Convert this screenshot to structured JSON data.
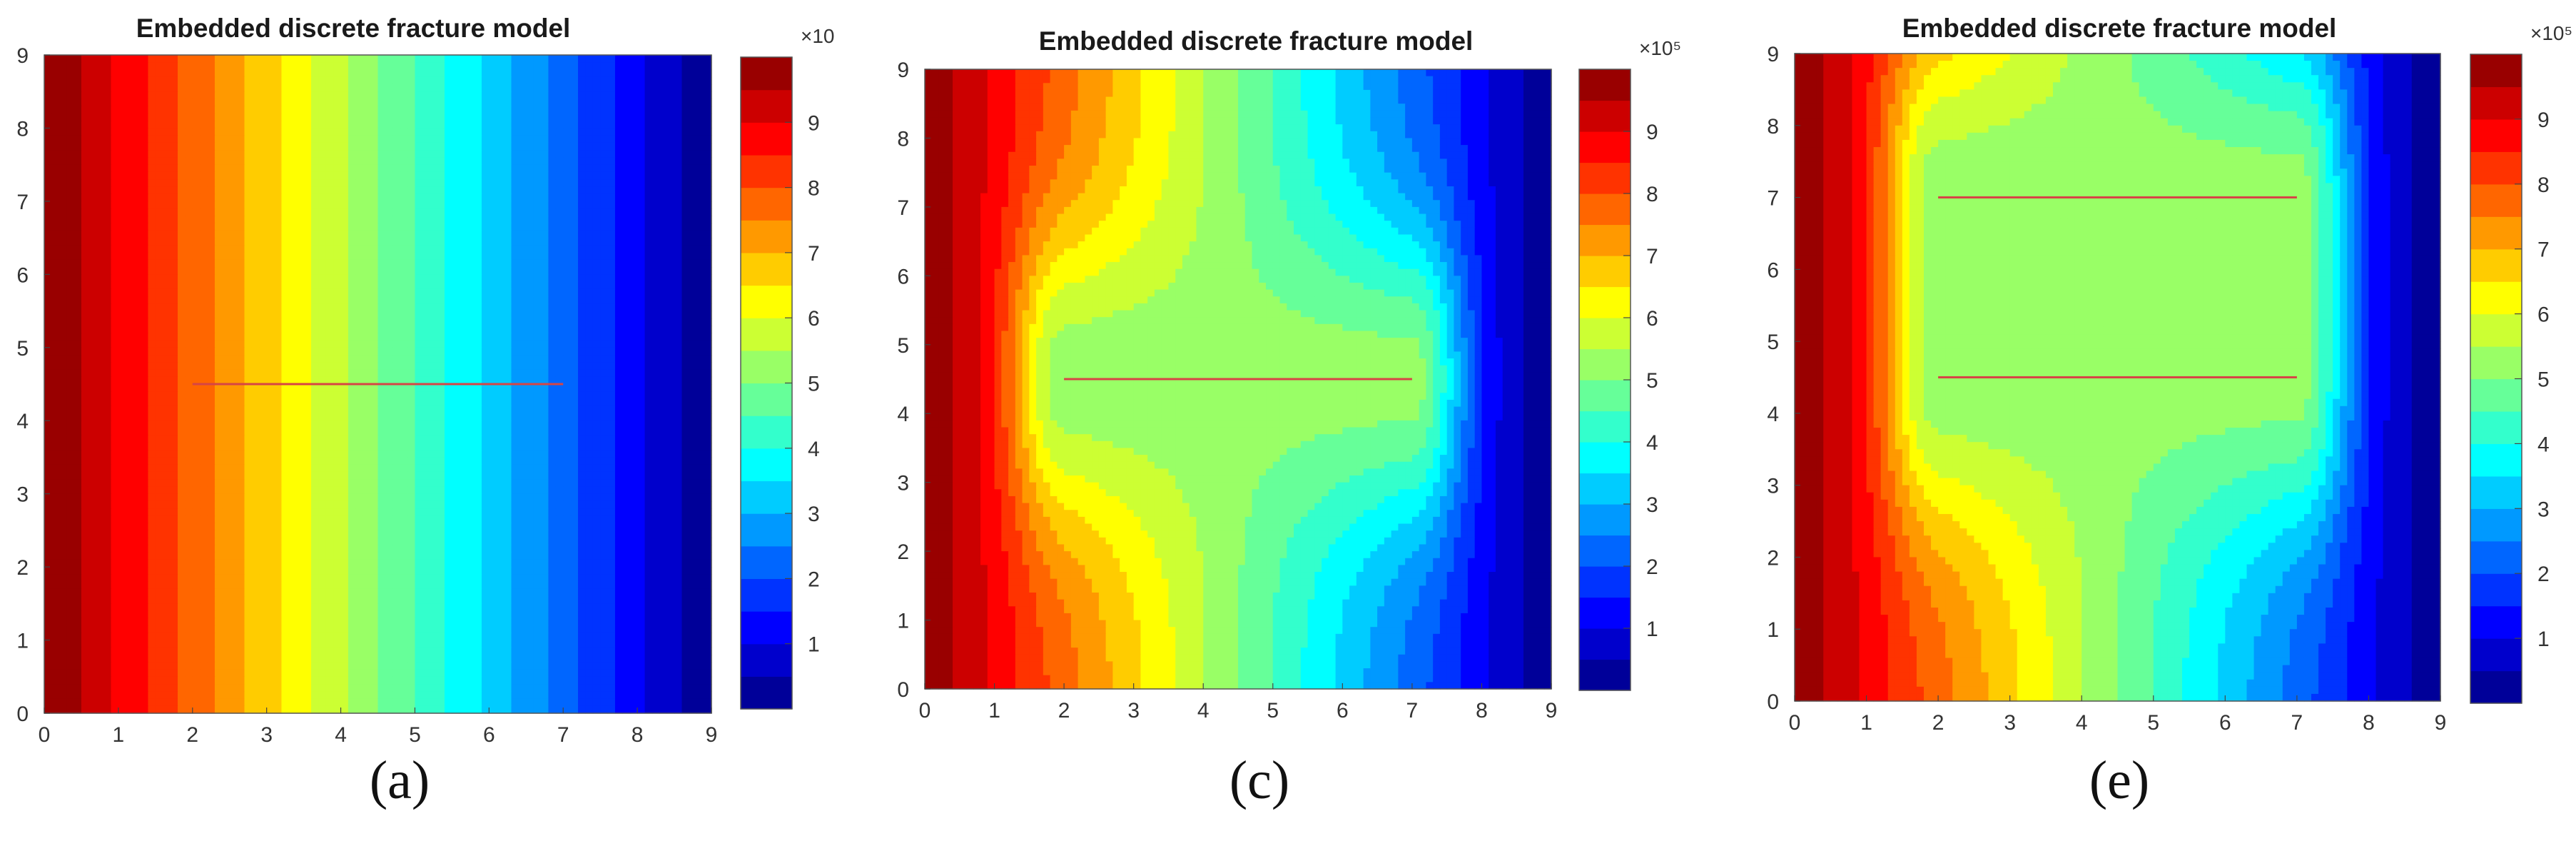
{
  "chart_data": [
    {
      "type": "heatmap",
      "panel_label": "(a)",
      "title": "Embedded discrete fracture model",
      "xlabel": "",
      "ylabel": "",
      "xlim": [
        0,
        9
      ],
      "ylim": [
        0,
        9
      ],
      "x_ticks": [
        "0",
        "1",
        "2",
        "3",
        "4",
        "5",
        "6",
        "7",
        "8",
        "9"
      ],
      "y_ticks": [
        "0",
        "1",
        "2",
        "3",
        "4",
        "5",
        "6",
        "7",
        "8",
        "9"
      ],
      "colorbar": {
        "min": 0,
        "max": 10,
        "ticks": [
          "1",
          "2",
          "3",
          "4",
          "5",
          "6",
          "7",
          "8",
          "9"
        ],
        "exponent_label": "×10"
      },
      "fractures": [
        {
          "x": [
            2.0,
            7.0
          ],
          "y": [
            4.5,
            4.5
          ],
          "color": "#d64545"
        }
      ],
      "colormap": "jet",
      "levels": 20
    },
    {
      "type": "heatmap",
      "panel_label": "(c)",
      "title": "Embedded discrete fracture model",
      "xlabel": "",
      "ylabel": "",
      "xlim": [
        0,
        9
      ],
      "ylim": [
        0,
        9
      ],
      "x_ticks": [
        "0",
        "1",
        "2",
        "3",
        "4",
        "5",
        "6",
        "7",
        "8",
        "9"
      ],
      "y_ticks": [
        "0",
        "1",
        "2",
        "3",
        "4",
        "5",
        "6",
        "7",
        "8",
        "9"
      ],
      "colorbar": {
        "min": 0,
        "max": 10,
        "ticks": [
          "1",
          "2",
          "3",
          "4",
          "5",
          "6",
          "7",
          "8",
          "9"
        ],
        "exponent_label": "×10⁵"
      },
      "fractures": [
        {
          "x": [
            2.0,
            7.0
          ],
          "y": [
            4.5,
            4.5
          ],
          "color": "#d64545"
        }
      ],
      "colormap": "jet",
      "levels": 20
    },
    {
      "type": "heatmap",
      "panel_label": "(e)",
      "title": "Embedded discrete fracture model",
      "xlabel": "",
      "ylabel": "",
      "xlim": [
        0,
        9
      ],
      "ylim": [
        0,
        9
      ],
      "x_ticks": [
        "0",
        "1",
        "2",
        "3",
        "4",
        "5",
        "6",
        "7",
        "8",
        "9"
      ],
      "y_ticks": [
        "0",
        "1",
        "2",
        "3",
        "4",
        "5",
        "6",
        "7",
        "8",
        "9"
      ],
      "colorbar": {
        "min": 0,
        "max": 10,
        "ticks": [
          "1",
          "2",
          "3",
          "4",
          "5",
          "6",
          "7",
          "8",
          "9"
        ],
        "exponent_label": "×10⁵"
      },
      "fractures": [
        {
          "x": [
            2.0,
            7.0
          ],
          "y": [
            7.0,
            7.0
          ],
          "color": "#d64545"
        },
        {
          "x": [
            2.0,
            7.0
          ],
          "y": [
            4.5,
            4.5
          ],
          "color": "#d64545"
        }
      ],
      "colormap": "jet",
      "levels": 20
    }
  ]
}
